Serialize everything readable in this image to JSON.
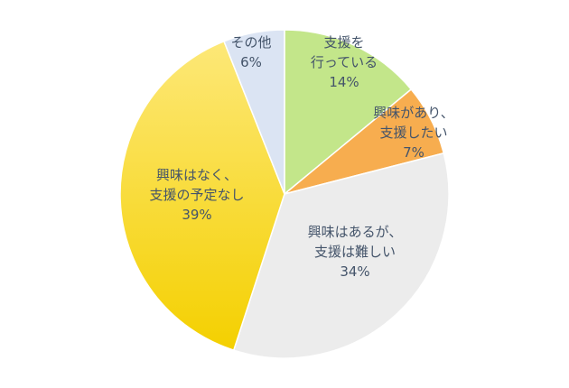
{
  "chart_data": {
    "type": "pie",
    "title": "",
    "slices": [
      {
        "label_lines": [
          "支援を",
          "行っている"
        ],
        "value": 14,
        "value_label": "14%",
        "color": "#c3e68a"
      },
      {
        "label_lines": [
          "興味があり、",
          "支援したい"
        ],
        "value": 7,
        "value_label": "7%",
        "color": "#f7ad4f"
      },
      {
        "label_lines": [
          "興味はあるが、",
          "支援は難しい"
        ],
        "value": 34,
        "value_label": "34%",
        "color": "#ececec"
      },
      {
        "label_lines": [
          "興味はなく、",
          "支援の予定なし"
        ],
        "value": 39,
        "value_label": "39%",
        "color": "#f5d000"
      },
      {
        "label_lines": [
          "その他"
        ],
        "value": 6,
        "value_label": "6%",
        "color": "#dbe4f3"
      }
    ]
  }
}
